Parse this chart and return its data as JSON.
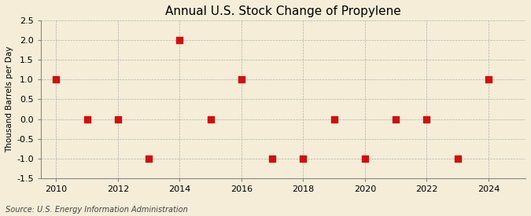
{
  "title": "Annual U.S. Stock Change of Propylene",
  "ylabel": "Thousand Barrels per Day",
  "source": "Source: U.S. Energy Information Administration",
  "x": [
    2010,
    2011,
    2012,
    2013,
    2014,
    2015,
    2016,
    2017,
    2018,
    2019,
    2020,
    2021,
    2022,
    2023,
    2024
  ],
  "y": [
    1.0,
    0.0,
    0.0,
    -1.0,
    2.0,
    0.0,
    1.0,
    -1.0,
    -1.0,
    0.0,
    -1.0,
    0.0,
    0.0,
    -1.0,
    1.0
  ],
  "xlim": [
    2009.5,
    2025.2
  ],
  "ylim": [
    -1.5,
    2.5
  ],
  "yticks": [
    -1.5,
    -1.0,
    -0.5,
    0.0,
    0.5,
    1.0,
    1.5,
    2.0,
    2.5
  ],
  "xticks": [
    2010,
    2012,
    2014,
    2016,
    2018,
    2020,
    2022,
    2024
  ],
  "marker_color": "#cc1111",
  "marker_size": 36,
  "bg_color": "#f5edd8",
  "grid_color": "#b0b0b0",
  "title_fontsize": 11,
  "label_fontsize": 7.5,
  "tick_fontsize": 8,
  "source_fontsize": 7
}
